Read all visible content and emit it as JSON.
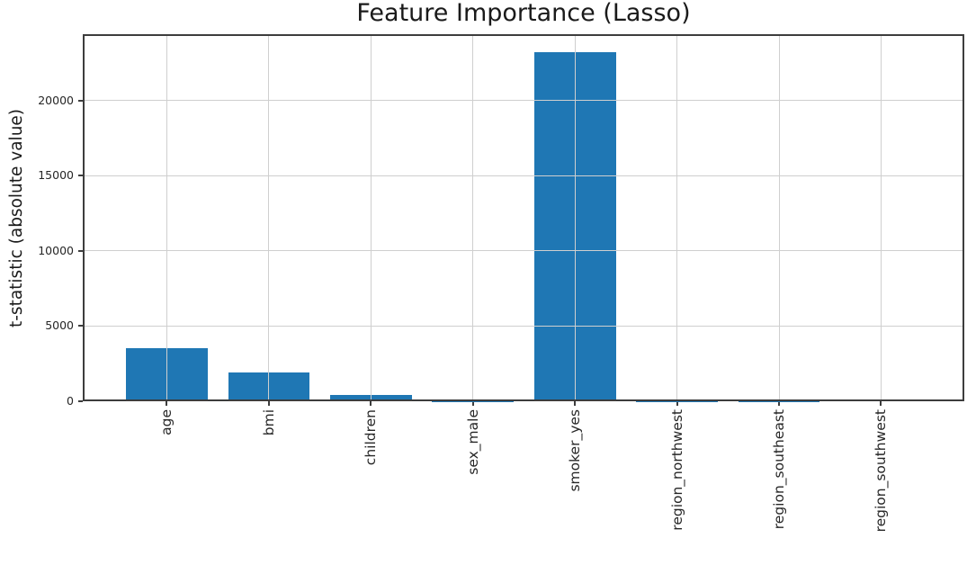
{
  "chart_data": {
    "type": "bar",
    "title": "Feature Importance (Lasso)",
    "ylabel": "t-statistic (absolute value)",
    "xlabel": "",
    "categories": [
      "age",
      "bmi",
      "children",
      "sex_male",
      "smoker_yes",
      "region_northwest",
      "region_southeast",
      "region_southwest"
    ],
    "values": [
      3500,
      1900,
      400,
      10,
      23200,
      5,
      10,
      140
    ],
    "yticks": [
      0,
      5000,
      10000,
      15000,
      20000
    ],
    "ylim": [
      0,
      24400
    ],
    "grid": true,
    "legend_position": "none",
    "bar_color": "#1f77b4",
    "grid_color": "#cfcfcf",
    "axis_color": "#3d3d3d",
    "text_color": "#1a1a1a",
    "background": "#ffffff"
  }
}
